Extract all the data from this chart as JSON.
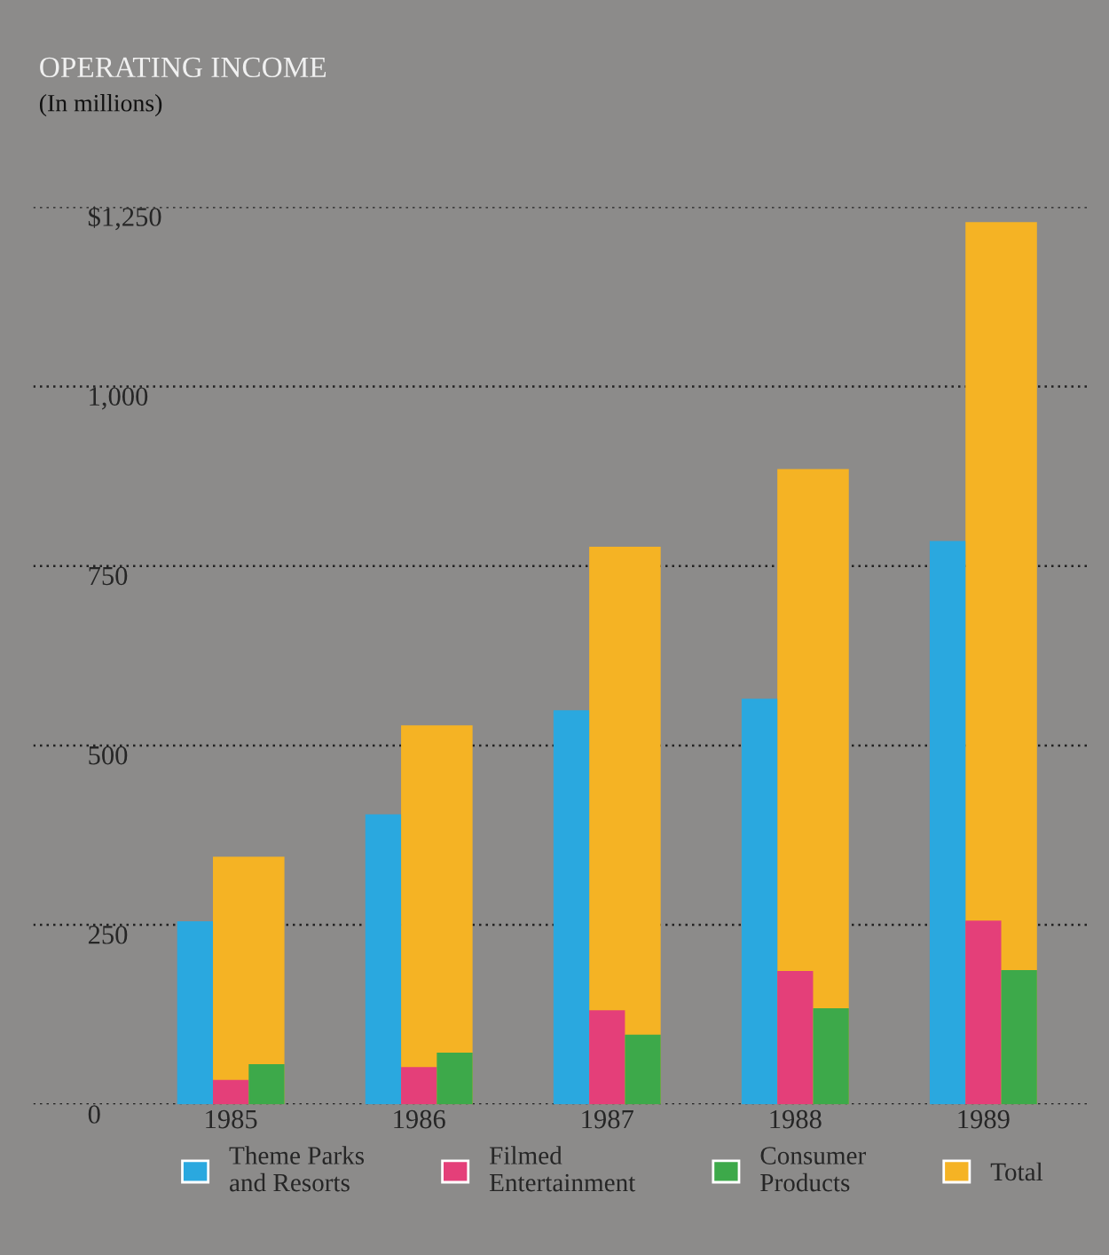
{
  "chart_data": {
    "type": "bar",
    "title": "OPERATING INCOME",
    "subtitle": "(In millions)",
    "categories": [
      "1985",
      "1986",
      "1987",
      "1988",
      "1989"
    ],
    "series": [
      {
        "name": "Theme Parks\nand Resorts",
        "color": "#2aa8df",
        "values": [
          255,
          404,
          549,
          565,
          785
        ]
      },
      {
        "name": "Filmed\nEntertainment",
        "color": "#e43f79",
        "values": [
          34,
          52,
          131,
          186,
          256
        ]
      },
      {
        "name": "Consumer\nProducts",
        "color": "#3da94a",
        "values": [
          56,
          72,
          97,
          134,
          187
        ]
      },
      {
        "name": "Total",
        "color": "#f5b324",
        "values": [
          345,
          528,
          777,
          885,
          1229
        ]
      }
    ],
    "ylim": [
      0,
      1250
    ],
    "yticks": [
      0,
      250,
      500,
      750,
      {
        "value": 1000,
        "label": "1,000"
      },
      {
        "value": 1250,
        "label": "$1,250"
      }
    ],
    "grid": "y",
    "legend": "bottom"
  }
}
